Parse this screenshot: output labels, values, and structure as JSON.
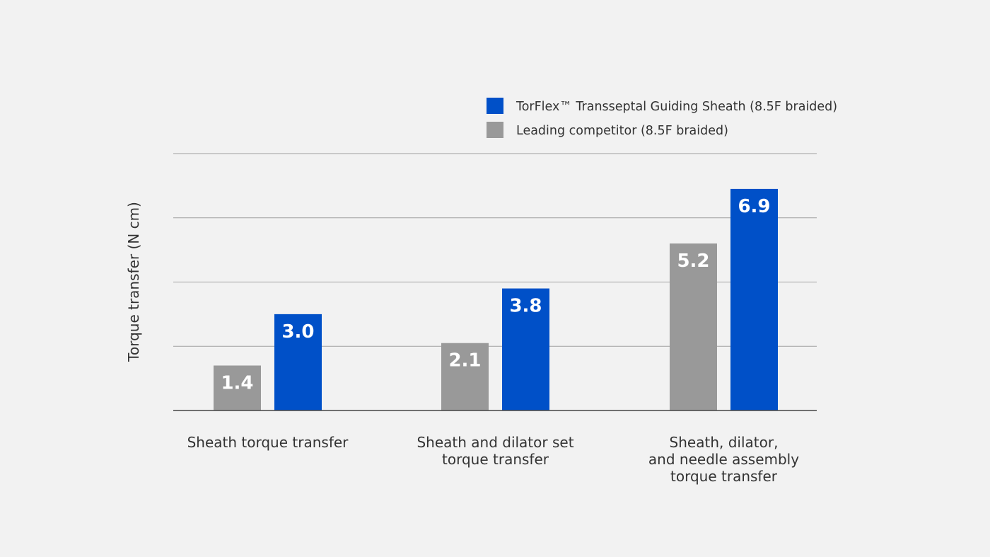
{
  "chart_data": {
    "type": "bar",
    "title": "",
    "xlabel": "",
    "ylabel": "Torque transfer (N cm)",
    "ylim": [
      0,
      8
    ],
    "grid": true,
    "gridlines": [
      2,
      4,
      6,
      8
    ],
    "y_tick_labels_shown": false,
    "legend_placement": "top-right",
    "categories": [
      [
        "Sheath torque transfer"
      ],
      [
        "Sheath and dilator set",
        "torque transfer"
      ],
      [
        "Sheath, dilator,",
        "and needle assembly",
        "torque transfer"
      ]
    ],
    "series": [
      {
        "name": "Leading competitor (8.5F braided)",
        "color": "#999999",
        "values": [
          1.4,
          2.1,
          5.2
        ],
        "labels": [
          "1.4",
          "2.1",
          "5.2"
        ]
      },
      {
        "name": "TorFlex™ Transseptal Guiding Sheath (8.5F braided)",
        "color": "#0050c8",
        "values": [
          3.0,
          3.8,
          6.9
        ],
        "labels": [
          "3.0",
          "3.8",
          "6.9"
        ]
      }
    ],
    "legend_order": [
      1,
      0
    ]
  },
  "colors": {
    "background": "#f2f2f2",
    "grid": "#a0a0a0",
    "axis": "#444444"
  }
}
